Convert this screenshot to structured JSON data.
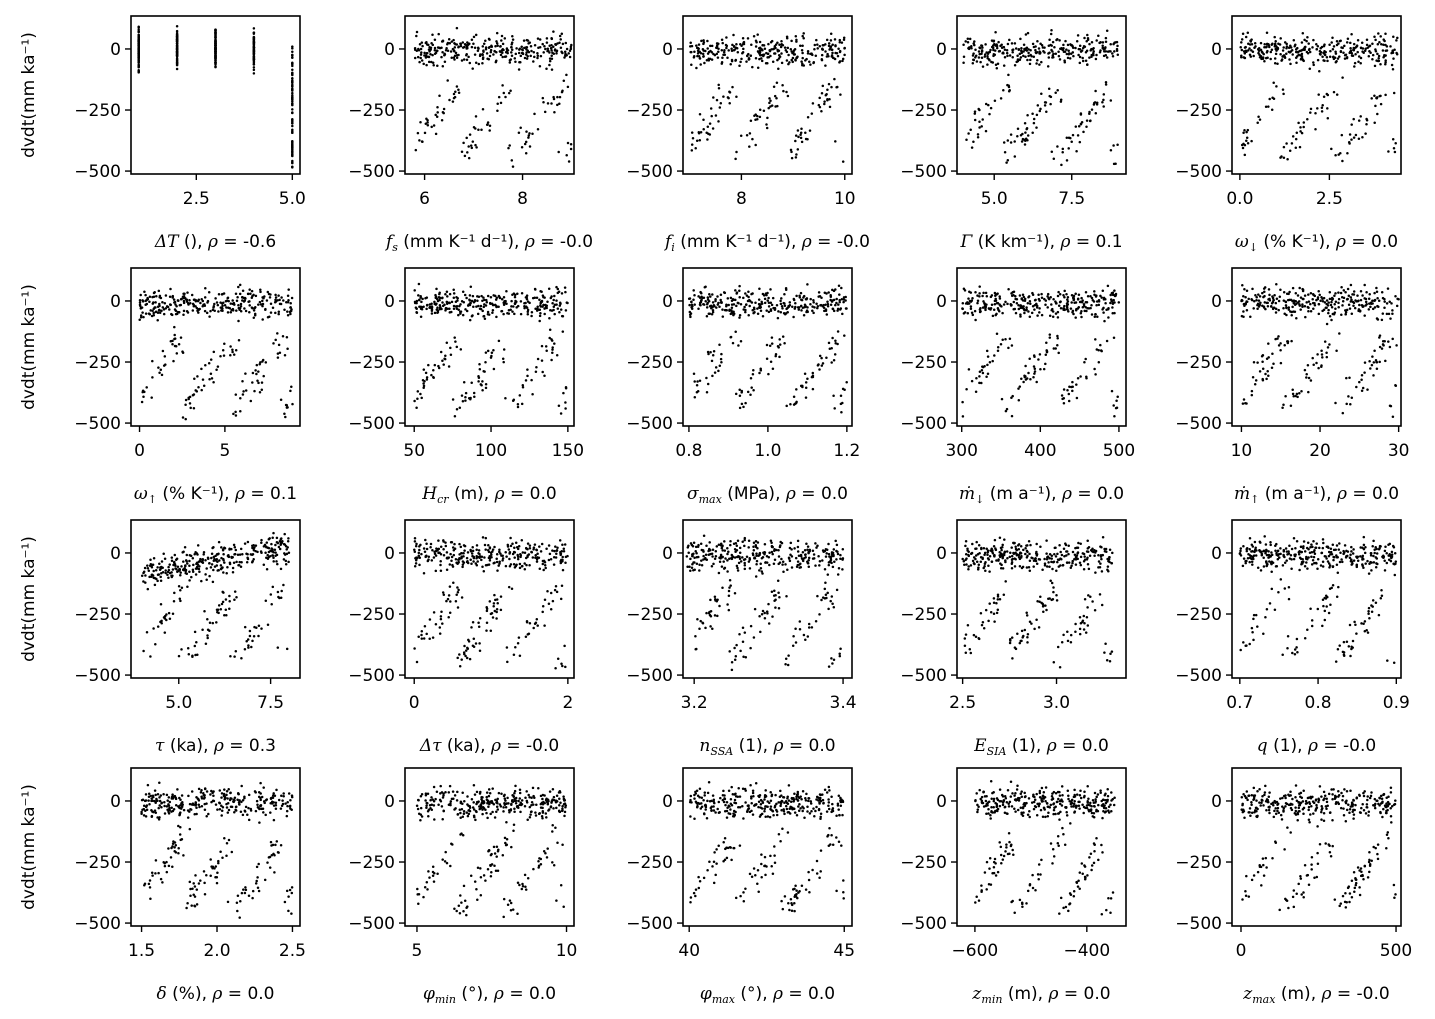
{
  "chart_data": {
    "type": "scatter",
    "title": "",
    "ylabel": "dvdt(mm ka⁻¹)",
    "ylim": [
      -512,
      135
    ],
    "yticks": [
      0,
      -250,
      -500
    ],
    "yticklabels": [
      "0",
      "−250",
      "−500"
    ],
    "points_per_panel": 420,
    "panels": [
      {
        "symbol": "ΔT",
        "sub": "",
        "unit": " ()",
        "rho": "-0.6",
        "xlim": [
          0.8,
          5.2
        ],
        "xticks": [
          2.5,
          5.0
        ],
        "xticklabels": [
          "2.5",
          "5.0"
        ],
        "x_range": [
          1,
          5
        ],
        "discrete_x": [
          1,
          2,
          3,
          4,
          5
        ],
        "band": [
          0,
          0
        ],
        "tail": 0
      },
      {
        "symbol": "f",
        "sub": "s",
        "unit": " (mm K⁻¹ d⁻¹)",
        "rho": "-0.0",
        "xlim": [
          5.6,
          9.05
        ],
        "xticks": [
          6,
          8
        ],
        "xticklabels": [
          "6",
          "8"
        ],
        "x_range": [
          5.8,
          9.0
        ],
        "band": [
          -5,
          -5
        ],
        "tail": 0.28
      },
      {
        "symbol": "f",
        "sub": "i",
        "unit": " (mm K⁻¹ d⁻¹)",
        "rho": "-0.0",
        "xlim": [
          6.87,
          10.14
        ],
        "xticks": [
          8,
          10
        ],
        "xticklabels": [
          "8",
          "10"
        ],
        "x_range": [
          7,
          10
        ],
        "band": [
          -10,
          -10
        ],
        "tail": 0.28
      },
      {
        "symbol": "Γ",
        "sub": "",
        "unit": " (K km⁻¹)",
        "rho": "0.1",
        "xlim": [
          3.8,
          9.25
        ],
        "xticks": [
          5,
          7.5
        ],
        "xticklabels": [
          "5.0",
          "7.5"
        ],
        "x_range": [
          4,
          9
        ],
        "band": [
          -15,
          5
        ],
        "tail": 0.28
      },
      {
        "symbol": "ω",
        "sub": "↓",
        "unit": " (% K⁻¹)",
        "rho": "0.0",
        "xlim": [
          -0.22,
          4.5
        ],
        "xticks": [
          0,
          2.5
        ],
        "xticklabels": [
          "0.0",
          "2.5"
        ],
        "x_range": [
          0,
          4.4
        ],
        "band": [
          -10,
          -10
        ],
        "tail": 0.28
      },
      {
        "symbol": "ω",
        "sub": "↑",
        "unit": " (% K⁻¹)",
        "rho": "0.1",
        "xlim": [
          -0.5,
          9.4
        ],
        "xticks": [
          0,
          5
        ],
        "xticklabels": [
          "0",
          "5"
        ],
        "x_range": [
          0,
          9
        ],
        "band": [
          -15,
          -5
        ],
        "tail": 0.28
      },
      {
        "symbol": "H",
        "sub": "cr",
        "unit": " (m)",
        "rho": "0.0",
        "xlim": [
          44,
          154
        ],
        "xticks": [
          50,
          100,
          150
        ],
        "xticklabels": [
          "50",
          "100",
          "150"
        ],
        "x_range": [
          50,
          150
        ],
        "band": [
          -10,
          -10
        ],
        "tail": 0.28
      },
      {
        "symbol": "σ",
        "sub": "max",
        "unit": " (MPa)",
        "rho": "0.0",
        "xlim": [
          0.785,
          1.213
        ],
        "xticks": [
          0.8,
          1.0,
          1.2
        ],
        "xticklabels": [
          "0.8",
          "1.0",
          "1.2"
        ],
        "x_range": [
          0.8,
          1.2
        ],
        "band": [
          -10,
          -10
        ],
        "tail": 0.28
      },
      {
        "symbol": "ṁ",
        "sub": "↓",
        "unit": " (m a⁻¹)",
        "rho": "0.0",
        "xlim": [
          294,
          509
        ],
        "xticks": [
          300,
          400,
          500
        ],
        "xticklabels": [
          "300",
          "400",
          "500"
        ],
        "x_range": [
          300,
          500
        ],
        "band": [
          -10,
          -10
        ],
        "tail": 0.28
      },
      {
        "symbol": "ṁ",
        "sub": "↑",
        "unit": " (m a⁻¹)",
        "rho": "0.0",
        "xlim": [
          8.8,
          30.3
        ],
        "xticks": [
          10,
          20,
          30
        ],
        "xticklabels": [
          "10",
          "20",
          "30"
        ],
        "x_range": [
          10,
          30
        ],
        "band": [
          -10,
          -10
        ],
        "tail": 0.28
      },
      {
        "symbol": "τ",
        "sub": "",
        "unit": " (ka)",
        "rho": "0.3",
        "xlim": [
          3.7,
          8.3
        ],
        "xticks": [
          5,
          7.5
        ],
        "xticklabels": [
          "5.0",
          "7.5"
        ],
        "x_range": [
          4,
          8
        ],
        "band": [
          -80,
          25
        ],
        "tail": 0.28
      },
      {
        "symbol": "Δτ",
        "sub": "",
        "unit": " (ka)",
        "rho": "-0.0",
        "xlim": [
          -0.12,
          2.08
        ],
        "xticks": [
          0,
          2
        ],
        "xticklabels": [
          "0",
          "2"
        ],
        "x_range": [
          0,
          2
        ],
        "band": [
          -10,
          -10
        ],
        "tail": 0.28
      },
      {
        "symbol": "n",
        "sub": "SSA",
        "unit": " (1)",
        "rho": "0.0",
        "xlim": [
          3.185,
          3.412
        ],
        "xticks": [
          3.2,
          3.4
        ],
        "xticklabels": [
          "3.2",
          "3.4"
        ],
        "x_range": [
          3.19,
          3.4
        ],
        "band": [
          -10,
          -10
        ],
        "tail": 0.28
      },
      {
        "symbol": "E",
        "sub": "SIA",
        "unit": " (1)",
        "rho": "0.0",
        "xlim": [
          2.47,
          3.37
        ],
        "xticks": [
          2.5,
          3.0
        ],
        "xticklabels": [
          "2.5",
          "3.0"
        ],
        "x_range": [
          2.5,
          3.3
        ],
        "band": [
          -10,
          -10
        ],
        "tail": 0.28
      },
      {
        "symbol": "q",
        "sub": "",
        "unit": " (1)",
        "rho": "-0.0",
        "xlim": [
          0.69,
          0.906
        ],
        "xticks": [
          0.7,
          0.8,
          0.9
        ],
        "xticklabels": [
          "0.7",
          "0.8",
          "0.9"
        ],
        "x_range": [
          0.7,
          0.9
        ],
        "band": [
          -10,
          -10
        ],
        "tail": 0.28
      },
      {
        "symbol": "δ",
        "sub": "",
        "unit": " (%)",
        "rho": "0.0",
        "xlim": [
          1.43,
          2.55
        ],
        "xticks": [
          1.5,
          2.0,
          2.5
        ],
        "xticklabels": [
          "1.5",
          "2.0",
          "2.5"
        ],
        "x_range": [
          1.5,
          2.5
        ],
        "band": [
          -10,
          -10
        ],
        "tail": 0.28
      },
      {
        "symbol": "φ",
        "sub": "min",
        "unit": " (°)",
        "rho": "0.0",
        "xlim": [
          4.6,
          10.25
        ],
        "xticks": [
          5,
          10
        ],
        "xticklabels": [
          "5",
          "10"
        ],
        "x_range": [
          5,
          10
        ],
        "band": [
          -10,
          -10
        ],
        "tail": 0.28
      },
      {
        "symbol": "φ",
        "sub": "max",
        "unit": " (°)",
        "rho": "0.0",
        "xlim": [
          39.8,
          45.25
        ],
        "xticks": [
          40,
          45
        ],
        "xticklabels": [
          "40",
          "45"
        ],
        "x_range": [
          40,
          45
        ],
        "band": [
          -10,
          -10
        ],
        "tail": 0.28
      },
      {
        "symbol": "z",
        "sub": "min",
        "unit": " (m)",
        "rho": "0.0",
        "xlim": [
          -632,
          -330
        ],
        "xticks": [
          -600,
          -400
        ],
        "xticklabels": [
          "−600",
          "−400"
        ],
        "x_range": [
          -600,
          -350
        ],
        "band": [
          -10,
          -10
        ],
        "tail": 0.28
      },
      {
        "symbol": "z",
        "sub": "max",
        "unit": " (m)",
        "rho": "-0.0",
        "xlim": [
          -29,
          516
        ],
        "xticks": [
          0,
          500
        ],
        "xticklabels": [
          "0",
          "500"
        ],
        "x_range": [
          0,
          500
        ],
        "band": [
          -10,
          -10
        ],
        "tail": 0.28
      }
    ]
  }
}
